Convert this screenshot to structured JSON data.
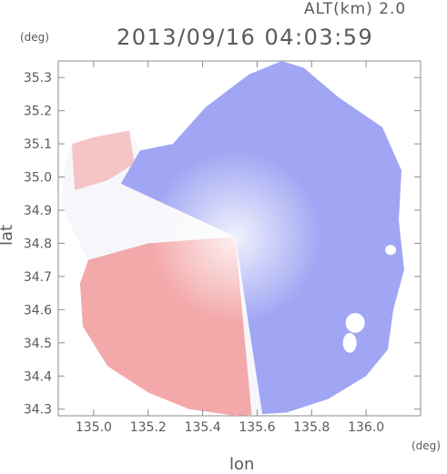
{
  "header": {
    "altitude_label": "ALT(km) 2.0",
    "timestamp": "2013/09/16 04:03:59"
  },
  "axes": {
    "y_unit": "(deg)",
    "x_unit": "(deg)",
    "y_label": "lat",
    "x_label": "lon"
  },
  "colors": {
    "approaching": "#8c94f0",
    "receding": "#f29a9a",
    "neutral": "#f7f7fb",
    "axis": "#8c8c8c",
    "text": "#5a5a5a"
  },
  "chart_data": {
    "type": "heatmap",
    "title": "2013/09/16 04:03:59",
    "subtitle": "ALT(km) 2.0",
    "xlabel": "lon",
    "ylabel": "lat",
    "xlim": [
      134.87,
      136.2
    ],
    "ylim": [
      34.28,
      35.35
    ],
    "x_ticks": [
      "135.0",
      "135.2",
      "135.4",
      "135.6",
      "135.8",
      "136.0"
    ],
    "x_tick_values": [
      135.0,
      135.2,
      135.4,
      135.6,
      135.8,
      136.0
    ],
    "y_ticks": [
      "34.3",
      "34.4",
      "34.5",
      "34.6",
      "34.7",
      "34.8",
      "34.9",
      "35.0",
      "35.1",
      "35.2",
      "35.3"
    ],
    "y_tick_values": [
      34.3,
      34.4,
      34.5,
      34.6,
      34.7,
      34.8,
      34.9,
      35.0,
      35.1,
      35.2,
      35.3
    ],
    "center": {
      "lon": 135.52,
      "lat": 34.82
    },
    "coverage_boundary": [
      {
        "lon": 135.0,
        "lat": 35.12
      },
      {
        "lon": 135.13,
        "lat": 35.14
      },
      {
        "lon": 135.17,
        "lat": 35.08
      },
      {
        "lon": 135.29,
        "lat": 35.1
      },
      {
        "lon": 135.41,
        "lat": 35.21
      },
      {
        "lon": 135.57,
        "lat": 35.31
      },
      {
        "lon": 135.69,
        "lat": 35.35
      },
      {
        "lon": 135.77,
        "lat": 35.33
      },
      {
        "lon": 135.9,
        "lat": 35.24
      },
      {
        "lon": 136.06,
        "lat": 35.15
      },
      {
        "lon": 136.13,
        "lat": 35.02
      },
      {
        "lon": 136.12,
        "lat": 34.87
      },
      {
        "lon": 136.14,
        "lat": 34.72
      },
      {
        "lon": 136.1,
        "lat": 34.6
      },
      {
        "lon": 136.08,
        "lat": 34.48
      },
      {
        "lon": 136.0,
        "lat": 34.4
      },
      {
        "lon": 135.86,
        "lat": 34.33
      },
      {
        "lon": 135.71,
        "lat": 34.29
      },
      {
        "lon": 135.52,
        "lat": 34.28
      },
      {
        "lon": 135.35,
        "lat": 34.3
      },
      {
        "lon": 135.2,
        "lat": 34.35
      },
      {
        "lon": 135.05,
        "lat": 34.43
      },
      {
        "lon": 134.96,
        "lat": 34.55
      },
      {
        "lon": 134.95,
        "lat": 34.68
      },
      {
        "lon": 134.98,
        "lat": 34.75
      },
      {
        "lon": 134.93,
        "lat": 34.83
      },
      {
        "lon": 134.88,
        "lat": 34.92
      },
      {
        "lon": 134.89,
        "lat": 35.02
      },
      {
        "lon": 134.92,
        "lat": 35.1
      }
    ],
    "regions": [
      {
        "name": "approaching",
        "points": [
          {
            "lon": 135.52,
            "lat": 34.82
          },
          {
            "lon": 135.1,
            "lat": 34.98
          },
          {
            "lon": 135.17,
            "lat": 35.08
          },
          {
            "lon": 135.29,
            "lat": 35.1
          },
          {
            "lon": 135.41,
            "lat": 35.21
          },
          {
            "lon": 135.57,
            "lat": 35.31
          },
          {
            "lon": 135.69,
            "lat": 35.35
          },
          {
            "lon": 135.77,
            "lat": 35.33
          },
          {
            "lon": 135.9,
            "lat": 35.24
          },
          {
            "lon": 136.06,
            "lat": 35.15
          },
          {
            "lon": 136.13,
            "lat": 35.02
          },
          {
            "lon": 136.12,
            "lat": 34.87
          },
          {
            "lon": 136.14,
            "lat": 34.72
          },
          {
            "lon": 136.1,
            "lat": 34.6
          },
          {
            "lon": 136.08,
            "lat": 34.48
          },
          {
            "lon": 136.0,
            "lat": 34.4
          },
          {
            "lon": 135.86,
            "lat": 34.33
          },
          {
            "lon": 135.71,
            "lat": 34.29
          },
          {
            "lon": 135.62,
            "lat": 34.28
          }
        ]
      },
      {
        "name": "receding",
        "points": [
          {
            "lon": 135.52,
            "lat": 34.82
          },
          {
            "lon": 135.58,
            "lat": 34.28
          },
          {
            "lon": 135.52,
            "lat": 34.28
          },
          {
            "lon": 135.35,
            "lat": 34.3
          },
          {
            "lon": 135.2,
            "lat": 34.35
          },
          {
            "lon": 135.05,
            "lat": 34.43
          },
          {
            "lon": 134.96,
            "lat": 34.55
          },
          {
            "lon": 134.95,
            "lat": 34.68
          },
          {
            "lon": 134.98,
            "lat": 34.75
          },
          {
            "lon": 135.2,
            "lat": 34.8
          }
        ]
      },
      {
        "name": "receding-northwest",
        "points": [
          {
            "lon": 134.93,
            "lat": 34.96
          },
          {
            "lon": 134.92,
            "lat": 35.1
          },
          {
            "lon": 135.0,
            "lat": 35.12
          },
          {
            "lon": 135.13,
            "lat": 35.14
          },
          {
            "lon": 135.15,
            "lat": 35.04
          },
          {
            "lon": 135.05,
            "lat": 34.99
          }
        ]
      }
    ],
    "gaps": [
      {
        "lon": 135.96,
        "lat": 34.56,
        "rlon": 0.035,
        "rlat": 0.03
      },
      {
        "lon": 135.94,
        "lat": 34.5,
        "rlon": 0.025,
        "rlat": 0.03
      },
      {
        "lon": 136.09,
        "lat": 34.78,
        "rlon": 0.02,
        "rlat": 0.015
      }
    ]
  }
}
